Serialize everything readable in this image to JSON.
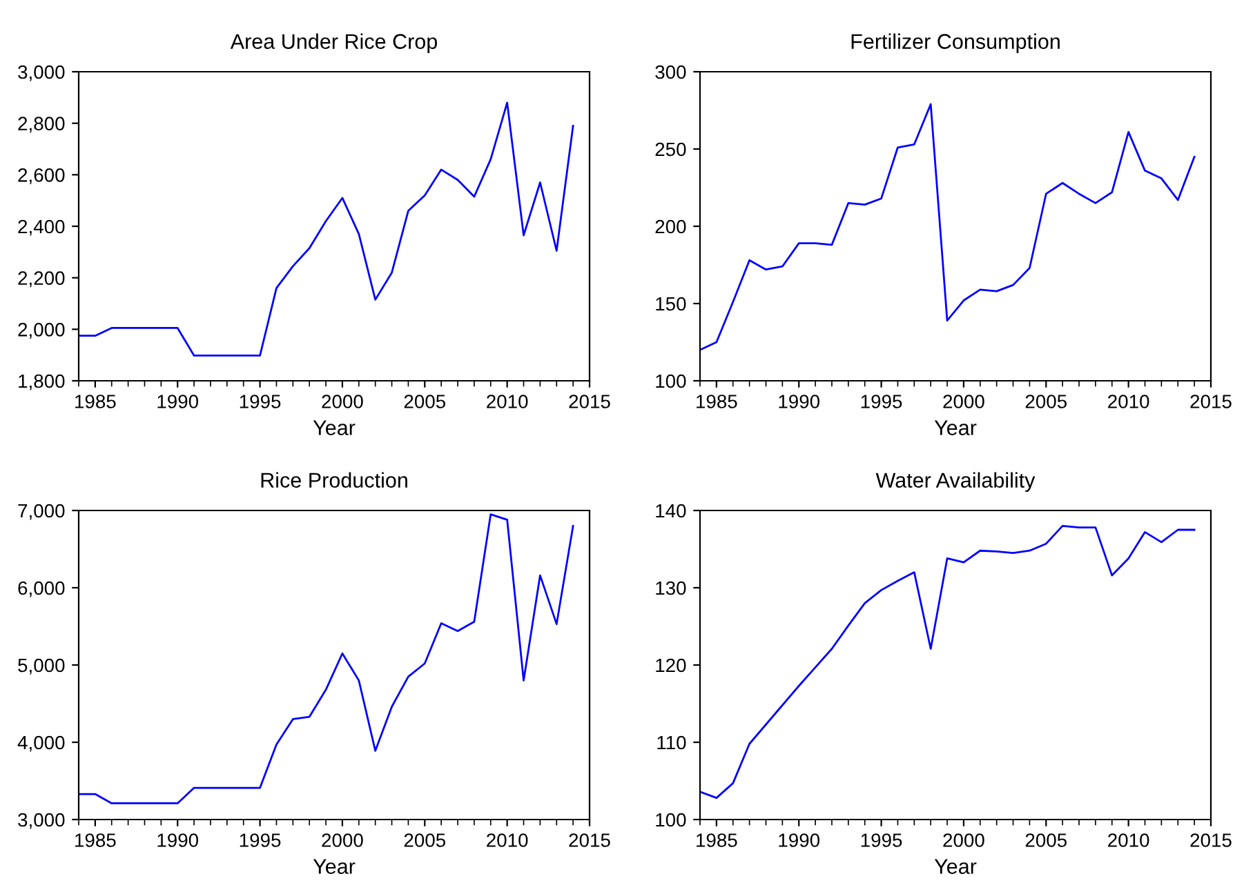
{
  "chart_data": [
    {
      "type": "line",
      "title": "Area Under Rice Crop",
      "xlabel": "Year",
      "x": [
        1984,
        1985,
        1986,
        1987,
        1988,
        1989,
        1990,
        1991,
        1992,
        1993,
        1994,
        1995,
        1996,
        1997,
        1998,
        1999,
        2000,
        2001,
        2002,
        2003,
        2004,
        2005,
        2006,
        2007,
        2008,
        2009,
        2010,
        2011,
        2012,
        2013,
        2014
      ],
      "series": [
        {
          "color": "#0000ff",
          "values": [
            1975,
            1975,
            2005,
            2005,
            2005,
            2005,
            2005,
            1898,
            1898,
            1898,
            1898,
            1898,
            2160,
            2245,
            2315,
            2420,
            2510,
            2370,
            2115,
            2220,
            2460,
            2520,
            2620,
            2580,
            2515,
            2660,
            2880,
            2365,
            2570,
            2305,
            2790
          ]
        }
      ],
      "xlim": [
        1984,
        2015
      ],
      "xticks": [
        1985,
        1990,
        1995,
        2000,
        2005,
        2010,
        2015
      ],
      "ylim": [
        1800,
        3000
      ],
      "yticks": [
        {
          "value": 1800,
          "label": "1,800"
        },
        {
          "value": 2000,
          "label": "2,000"
        },
        {
          "value": 2200,
          "label": "2,200"
        },
        {
          "value": 2400,
          "label": "2,400"
        },
        {
          "value": 2600,
          "label": "2,600"
        },
        {
          "value": 2800,
          "label": "2,800"
        },
        {
          "value": 3000,
          "label": "3,000"
        }
      ],
      "grid": false,
      "legend": false
    },
    {
      "type": "line",
      "title": "Fertilizer Consumption",
      "xlabel": "Year",
      "x": [
        1984,
        1985,
        1986,
        1987,
        1988,
        1989,
        1990,
        1991,
        1992,
        1993,
        1994,
        1995,
        1996,
        1997,
        1998,
        1999,
        2000,
        2001,
        2002,
        2003,
        2004,
        2005,
        2006,
        2007,
        2008,
        2009,
        2010,
        2011,
        2012,
        2013,
        2014
      ],
      "series": [
        {
          "color": "#0000ff",
          "values": [
            120,
            125,
            151,
            178,
            172,
            174,
            189,
            189,
            188,
            215,
            214,
            218,
            251,
            253,
            279,
            139,
            152,
            159,
            158,
            162,
            173,
            221,
            228,
            221,
            215,
            222,
            261,
            236,
            231,
            217,
            245
          ]
        }
      ],
      "xlim": [
        1984,
        2015
      ],
      "xticks": [
        1985,
        1990,
        1995,
        2000,
        2005,
        2010,
        2015
      ],
      "ylim": [
        100,
        300
      ],
      "yticks": [
        100,
        150,
        200,
        250,
        300
      ],
      "grid": false,
      "legend": false
    },
    {
      "type": "line",
      "title": "Rice Production",
      "xlabel": "Year",
      "x": [
        1984,
        1985,
        1986,
        1987,
        1988,
        1989,
        1990,
        1991,
        1992,
        1993,
        1994,
        1995,
        1996,
        1997,
        1998,
        1999,
        2000,
        2001,
        2002,
        2003,
        2004,
        2005,
        2006,
        2007,
        2008,
        2009,
        2010,
        2011,
        2012,
        2013,
        2014
      ],
      "series": [
        {
          "color": "#0000ff",
          "values": [
            3330,
            3330,
            3210,
            3210,
            3210,
            3210,
            3210,
            3410,
            3410,
            3410,
            3410,
            3410,
            3970,
            4300,
            4330,
            4680,
            5150,
            4800,
            3890,
            4460,
            4850,
            5020,
            5540,
            5440,
            5560,
            6950,
            6880,
            4800,
            6160,
            5530,
            6800
          ]
        }
      ],
      "xlim": [
        1984,
        2015
      ],
      "xticks": [
        1985,
        1990,
        1995,
        2000,
        2005,
        2010,
        2015
      ],
      "ylim": [
        3000,
        7000
      ],
      "yticks": [
        {
          "value": 3000,
          "label": "3,000"
        },
        {
          "value": 4000,
          "label": "4,000"
        },
        {
          "value": 5000,
          "label": "5,000"
        },
        {
          "value": 6000,
          "label": "6,000"
        },
        {
          "value": 7000,
          "label": "7,000"
        }
      ],
      "grid": false,
      "legend": false
    },
    {
      "type": "line",
      "title": "Water Availability",
      "xlabel": "Year",
      "x": [
        1984,
        1985,
        1986,
        1987,
        1988,
        1989,
        1990,
        1991,
        1992,
        1993,
        1994,
        1995,
        1996,
        1997,
        1998,
        1999,
        2000,
        2001,
        2002,
        2003,
        2004,
        2005,
        2006,
        2007,
        2008,
        2009,
        2010,
        2011,
        2012,
        2013,
        2014
      ],
      "series": [
        {
          "color": "#0000ff",
          "values": [
            103.6,
            102.8,
            104.7,
            109.8,
            112.3,
            114.8,
            117.3,
            119.7,
            122.1,
            125.1,
            128.0,
            129.7,
            130.9,
            132.0,
            122.1,
            133.8,
            133.3,
            134.8,
            134.7,
            134.5,
            134.8,
            135.7,
            138.0,
            137.8,
            137.8,
            131.6,
            133.8,
            137.2,
            135.9,
            137.5,
            137.5
          ]
        }
      ],
      "xlim": [
        1984,
        2015
      ],
      "xticks": [
        1985,
        1990,
        1995,
        2000,
        2005,
        2010,
        2015
      ],
      "ylim": [
        100,
        140
      ],
      "yticks": [
        100,
        110,
        120,
        130,
        140
      ],
      "grid": false,
      "legend": false
    }
  ]
}
